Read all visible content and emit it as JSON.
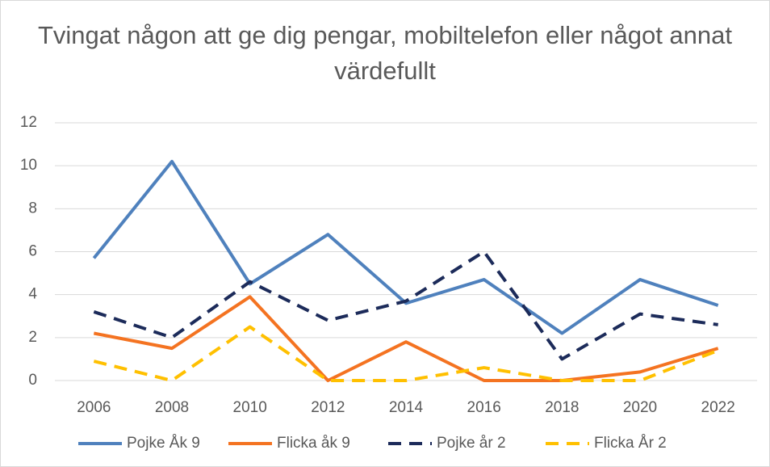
{
  "chart_data": {
    "type": "line",
    "title": "Tvingat någon att ge dig pengar, mobiltelefon eller något annat värdefullt",
    "categories": [
      "2006",
      "2008",
      "2010",
      "2012",
      "2014",
      "2016",
      "2018",
      "2020",
      "2022"
    ],
    "series": [
      {
        "name": "Pojke Åk 9",
        "color": "#4f81bd",
        "dashed": false,
        "values": [
          5.7,
          10.2,
          4.5,
          6.8,
          3.6,
          4.7,
          2.2,
          4.7,
          3.5
        ]
      },
      {
        "name": "Flicka åk 9",
        "color": "#f47321",
        "dashed": false,
        "values": [
          2.2,
          1.5,
          3.9,
          0.0,
          1.8,
          0.0,
          0.0,
          0.4,
          1.5
        ]
      },
      {
        "name": "Pojke år 2",
        "color": "#1c2b5a",
        "dashed": true,
        "values": [
          3.2,
          2.0,
          4.6,
          2.8,
          3.7,
          6.0,
          1.0,
          3.1,
          2.6
        ]
      },
      {
        "name": "Flicka År 2",
        "color": "#ffc000",
        "dashed": true,
        "values": [
          0.9,
          0.0,
          2.5,
          0.0,
          0.0,
          0.6,
          0.0,
          0.0,
          1.4
        ]
      }
    ],
    "ylim": [
      0,
      12
    ],
    "yticks": [
      0,
      2,
      4,
      6,
      8,
      10,
      12
    ],
    "grid": true,
    "legend": "bottom"
  }
}
